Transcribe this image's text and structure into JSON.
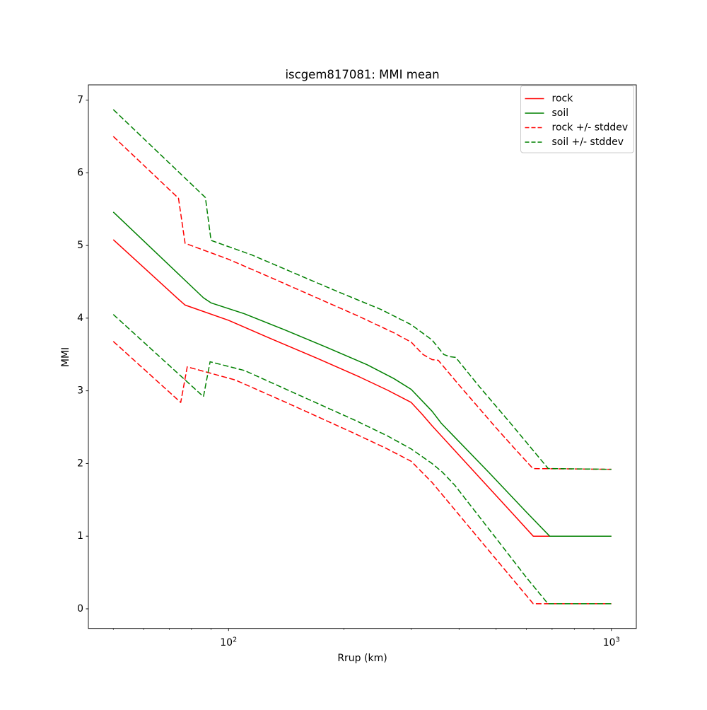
{
  "chart_data": {
    "type": "line",
    "title": "iscgem817081: MMI mean",
    "xlabel": "Rrup (km)",
    "ylabel": "MMI",
    "xscale": "log",
    "xlim": [
      43.04,
      1161.6
    ],
    "ylim": [
      -0.27,
      7.21
    ],
    "yticks": [
      0,
      1,
      2,
      3,
      4,
      5,
      6,
      7
    ],
    "xticks_major": [
      {
        "value": 100,
        "base": "10",
        "exp": "2"
      },
      {
        "value": 1000,
        "base": "10",
        "exp": "3"
      }
    ],
    "xticks_minor": [
      50,
      60,
      70,
      80,
      90,
      200,
      300,
      400,
      500,
      600,
      700,
      800,
      900
    ],
    "grid": false,
    "colors": {
      "rock": "#ff0000",
      "soil": "#008000",
      "spine": "#000000",
      "legend_edge": "#cccccc"
    },
    "legend": {
      "position": "upper right",
      "entries": [
        {
          "label": "rock",
          "color": "#ff0000",
          "dashed": false
        },
        {
          "label": "soil",
          "color": "#008000",
          "dashed": false
        },
        {
          "label": "rock +/- stddev",
          "color": "#ff0000",
          "dashed": true
        },
        {
          "label": "soil +/- stddev",
          "color": "#008000",
          "dashed": true
        }
      ]
    },
    "series": [
      {
        "name": "rock",
        "color": "#ff0000",
        "dashed": false,
        "points": [
          [
            50,
            5.08
          ],
          [
            74,
            4.26
          ],
          [
            77,
            4.18
          ],
          [
            100,
            3.97
          ],
          [
            130,
            3.71
          ],
          [
            170,
            3.45
          ],
          [
            220,
            3.19
          ],
          [
            260,
            3.01
          ],
          [
            300,
            2.84
          ],
          [
            320,
            2.68
          ],
          [
            340,
            2.52
          ],
          [
            450,
            1.82
          ],
          [
            550,
            1.32
          ],
          [
            625,
            1.0
          ],
          [
            1000,
            1.0
          ]
        ]
      },
      {
        "name": "soil",
        "color": "#008000",
        "dashed": false,
        "points": [
          [
            50,
            5.46
          ],
          [
            86,
            4.28
          ],
          [
            90,
            4.21
          ],
          [
            110,
            4.06
          ],
          [
            140,
            3.84
          ],
          [
            180,
            3.6
          ],
          [
            230,
            3.36
          ],
          [
            270,
            3.17
          ],
          [
            300,
            3.02
          ],
          [
            340,
            2.72
          ],
          [
            360,
            2.55
          ],
          [
            478,
            1.88
          ],
          [
            600,
            1.33
          ],
          [
            690,
            1.0
          ],
          [
            1000,
            1.0
          ]
        ]
      },
      {
        "name": "rock plus stddev",
        "color": "#ff0000",
        "dashed": true,
        "points": [
          [
            50,
            6.5
          ],
          [
            74,
            5.65
          ],
          [
            77,
            5.03
          ],
          [
            100,
            4.81
          ],
          [
            130,
            4.55
          ],
          [
            170,
            4.28
          ],
          [
            220,
            4.02
          ],
          [
            270,
            3.8
          ],
          [
            300,
            3.67
          ],
          [
            322,
            3.5
          ],
          [
            340,
            3.43
          ],
          [
            353,
            3.42
          ],
          [
            400,
            3.08
          ],
          [
            500,
            2.49
          ],
          [
            560,
            2.2
          ],
          [
            624,
            1.93
          ],
          [
            1000,
            1.92
          ]
        ]
      },
      {
        "name": "rock minus stddev",
        "color": "#ff0000",
        "dashed": true,
        "points": [
          [
            50,
            3.68
          ],
          [
            75,
            2.84
          ],
          [
            78,
            3.33
          ],
          [
            104,
            3.15
          ],
          [
            140,
            2.85
          ],
          [
            180,
            2.59
          ],
          [
            214,
            2.41
          ],
          [
            260,
            2.2
          ],
          [
            300,
            2.03
          ],
          [
            340,
            1.74
          ],
          [
            450,
            0.97
          ],
          [
            550,
            0.42
          ],
          [
            625,
            0.07
          ],
          [
            1000,
            0.07
          ]
        ]
      },
      {
        "name": "soil plus stddev",
        "color": "#008000",
        "dashed": true,
        "points": [
          [
            50,
            6.87
          ],
          [
            87,
            5.66
          ],
          [
            90,
            5.07
          ],
          [
            115,
            4.87
          ],
          [
            150,
            4.61
          ],
          [
            200,
            4.33
          ],
          [
            250,
            4.12
          ],
          [
            300,
            3.91
          ],
          [
            340,
            3.7
          ],
          [
            365,
            3.5
          ],
          [
            378,
            3.47
          ],
          [
            392,
            3.46
          ],
          [
            450,
            3.07
          ],
          [
            550,
            2.53
          ],
          [
            620,
            2.2
          ],
          [
            684,
            1.93
          ],
          [
            1000,
            1.92
          ]
        ]
      },
      {
        "name": "soil minus stddev",
        "color": "#008000",
        "dashed": true,
        "points": [
          [
            50,
            4.05
          ],
          [
            86,
            2.92
          ],
          [
            89.5,
            3.4
          ],
          [
            110,
            3.28
          ],
          [
            150,
            2.96
          ],
          [
            215,
            2.59
          ],
          [
            260,
            2.38
          ],
          [
            300,
            2.2
          ],
          [
            340,
            2.0
          ],
          [
            362,
            1.88
          ],
          [
            390,
            1.7
          ],
          [
            500,
            0.97
          ],
          [
            600,
            0.43
          ],
          [
            683,
            0.07
          ],
          [
            1000,
            0.07
          ]
        ]
      }
    ]
  }
}
